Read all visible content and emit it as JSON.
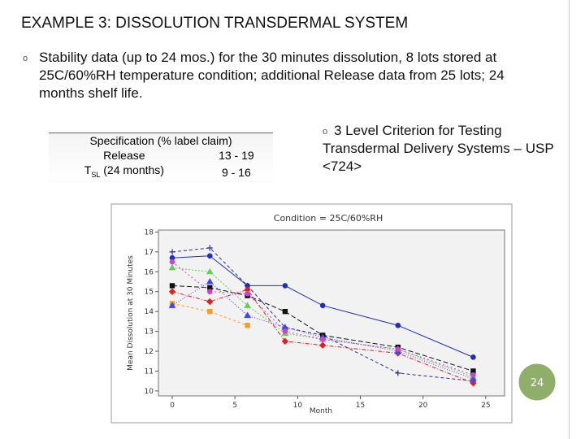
{
  "header": {
    "title": "EXAMPLE 3: DISSOLUTION TRANSDERMAL SYSTEM"
  },
  "bullets": [
    "Stability data (up to 24 mos.) for the 30 minutes dissolution, 8 lots stored at 25C/60%RH temperature condition; additional Release data from 25 lots; 24 months shelf life."
  ],
  "table": {
    "header": "Specification (% label claim)",
    "rows": [
      [
        {
          "main": "Release"
        },
        "13 - 19"
      ],
      [
        {
          "main": "T",
          "sub": "SL",
          "rest": " (24 months)"
        },
        "9 - 16"
      ]
    ]
  },
  "side_bullet": "3 Level Criterion for Testing Transdermal Delivery Systems – USP <724>",
  "slide_number": "24",
  "chart_data": {
    "type": "line",
    "title": "Condition = 25C/60%RH",
    "x_label": "Month",
    "y_label": "Mean Dissolution at 30 Minutes",
    "x": [
      0,
      3,
      6,
      9,
      12,
      18,
      24
    ],
    "xlim": [
      -1.1,
      26.5
    ],
    "xticks": [
      0,
      5,
      10,
      15,
      20,
      25
    ],
    "ylim": [
      9.75,
      18.1
    ],
    "yticks": [
      10,
      11,
      12,
      13,
      14,
      15,
      16,
      17,
      18
    ],
    "series": [
      {
        "color": "#1f2fbf",
        "marker": "circle",
        "dash": "none",
        "values": [
          16.7,
          16.8,
          15.3,
          15.3,
          14.3,
          13.3,
          11.7
        ]
      },
      {
        "color": "#2a2a9a",
        "marker": "plus",
        "dash": "4 3",
        "values": [
          17.0,
          17.2,
          15.3,
          13.2,
          12.8,
          10.9,
          10.5
        ]
      },
      {
        "color": "#111111",
        "marker": "square",
        "dash": "6 3",
        "values": [
          15.3,
          15.2,
          14.8,
          14.0,
          12.8,
          12.2,
          11.0
        ]
      },
      {
        "color": "#66cc55",
        "marker": "triangle",
        "dash": "2 2",
        "values": [
          16.2,
          16.0,
          14.3,
          12.9,
          12.6,
          12.1,
          10.7
        ]
      },
      {
        "color": "#dd2222",
        "marker": "diamond",
        "dash": "5 2 1 2",
        "values": [
          15.0,
          14.5,
          15.1,
          12.5,
          12.3,
          11.9,
          10.4
        ]
      },
      {
        "color": "#f0a020",
        "marker": "square",
        "dash": "3 3",
        "values": [
          14.4,
          14.0,
          13.3,
          null,
          null,
          null,
          null
        ]
      },
      {
        "color": "#4444ee",
        "marker": "triangle",
        "dash": "1 2",
        "values": [
          14.3,
          15.5,
          13.8,
          13.2,
          12.7,
          12.0,
          10.6
        ]
      },
      {
        "color": "#cc44cc",
        "marker": "circle",
        "dash": "2 3",
        "values": [
          16.5,
          15.0,
          14.9,
          13.0,
          12.6,
          12.1,
          10.8
        ]
      }
    ]
  }
}
